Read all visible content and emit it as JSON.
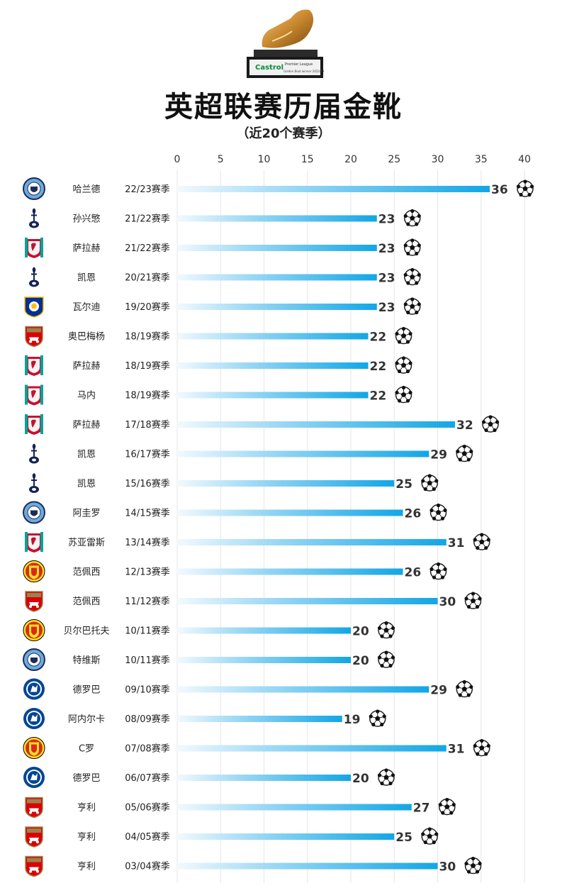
{
  "header": {
    "title": "英超联赛历届金靴",
    "subtitle": "（近20个赛季）",
    "trophy_plaque_brand": "Castrol",
    "trophy_plaque_league": "Premier League",
    "trophy_plaque_text": "Golden Boot winner 2022/23"
  },
  "colors": {
    "bar_start": "#f2f9fe",
    "bar_end": "#12a6e6",
    "grid": "#e6e6e6",
    "label": "#333333",
    "trophy_gold": "#c8882e"
  },
  "chart_data": {
    "type": "bar",
    "orientation": "horizontal",
    "xlim": [
      0,
      40
    ],
    "xticks": [
      0,
      5,
      10,
      15,
      20,
      25,
      30,
      35,
      40
    ],
    "grid": true,
    "title": "英超联赛历届金靴",
    "subtitle": "（近20个赛季）",
    "rows": [
      {
        "player": "哈兰德",
        "season": "22/23赛季",
        "value": 36,
        "club_icon": "man-city-crest"
      },
      {
        "player": "孙兴慜",
        "season": "21/22赛季",
        "value": 23,
        "club_icon": "tottenham-crest"
      },
      {
        "player": "萨拉赫",
        "season": "21/22赛季",
        "value": 23,
        "club_icon": "liverpool-crest"
      },
      {
        "player": "凯恩",
        "season": "20/21赛季",
        "value": 23,
        "club_icon": "tottenham-crest"
      },
      {
        "player": "瓦尔迪",
        "season": "19/20赛季",
        "value": 23,
        "club_icon": "leicester-crest"
      },
      {
        "player": "奥巴梅杨",
        "season": "18/19赛季",
        "value": 22,
        "club_icon": "arsenal-crest"
      },
      {
        "player": "萨拉赫",
        "season": "18/19赛季",
        "value": 22,
        "club_icon": "liverpool-crest"
      },
      {
        "player": "马内",
        "season": "18/19赛季",
        "value": 22,
        "club_icon": "liverpool-crest"
      },
      {
        "player": "萨拉赫",
        "season": "17/18赛季",
        "value": 32,
        "club_icon": "liverpool-crest"
      },
      {
        "player": "凯恩",
        "season": "16/17赛季",
        "value": 29,
        "club_icon": "tottenham-crest"
      },
      {
        "player": "凯恩",
        "season": "15/16赛季",
        "value": 25,
        "club_icon": "tottenham-crest"
      },
      {
        "player": "阿圭罗",
        "season": "14/15赛季",
        "value": 26,
        "club_icon": "man-city-crest"
      },
      {
        "player": "苏亚雷斯",
        "season": "13/14赛季",
        "value": 31,
        "club_icon": "liverpool-crest"
      },
      {
        "player": "范佩西",
        "season": "12/13赛季",
        "value": 26,
        "club_icon": "man-united-crest"
      },
      {
        "player": "范佩西",
        "season": "11/12赛季",
        "value": 30,
        "club_icon": "arsenal-crest"
      },
      {
        "player": "贝尔巴托夫",
        "season": "10/11赛季",
        "value": 20,
        "club_icon": "man-united-crest"
      },
      {
        "player": "特维斯",
        "season": "10/11赛季",
        "value": 20,
        "club_icon": "man-city-crest"
      },
      {
        "player": "德罗巴",
        "season": "09/10赛季",
        "value": 29,
        "club_icon": "chelsea-crest"
      },
      {
        "player": "阿内尔卡",
        "season": "08/09赛季",
        "value": 19,
        "club_icon": "chelsea-crest"
      },
      {
        "player": "C罗",
        "season": "07/08赛季",
        "value": 31,
        "club_icon": "man-united-crest"
      },
      {
        "player": "德罗巴",
        "season": "06/07赛季",
        "value": 20,
        "club_icon": "chelsea-crest"
      },
      {
        "player": "亨利",
        "season": "05/06赛季",
        "value": 27,
        "club_icon": "arsenal-crest"
      },
      {
        "player": "亨利",
        "season": "04/05赛季",
        "value": 25,
        "club_icon": "arsenal-crest"
      },
      {
        "player": "亨利",
        "season": "03/04赛季",
        "value": 30,
        "club_icon": "arsenal-crest"
      }
    ]
  }
}
